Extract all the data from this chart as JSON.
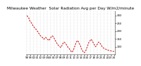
{
  "title": "Milwaukee Weather  Solar Radiation Avg per Day W/m2/minute",
  "background_color": "#ffffff",
  "line_color": "#cc0000",
  "grid_color": "#999999",
  "x_labels": [
    "98",
    "99",
    "00",
    "01",
    "02",
    "03",
    "04",
    "05",
    "06",
    "07",
    "08",
    "09",
    "10",
    "11",
    "12",
    "13",
    "14",
    "15",
    "16",
    "17",
    "18",
    "19",
    "20",
    "21",
    "22",
    "23",
    "24"
  ],
  "ylim": [
    50,
    330
  ],
  "yticks": [
    100,
    150,
    200,
    250,
    300
  ],
  "title_fontsize": 4.2,
  "tick_fontsize": 2.8,
  "y_data": [
    300,
    290,
    285,
    270,
    260,
    255,
    245,
    235,
    230,
    220,
    215,
    210,
    200,
    195,
    185,
    178,
    170,
    165,
    160,
    155,
    148,
    155,
    160,
    155,
    148,
    145,
    140,
    148,
    158,
    165,
    170,
    165,
    155,
    145,
    135,
    125,
    118,
    110,
    105,
    100,
    95,
    105,
    115,
    125,
    130,
    125,
    118,
    110,
    100,
    95,
    88,
    80,
    72,
    65,
    70,
    80,
    95,
    110,
    125,
    135,
    140,
    130,
    120,
    108,
    95,
    80,
    72,
    65,
    62,
    70,
    80,
    95,
    110,
    125,
    135,
    142,
    148,
    140,
    130,
    120,
    110,
    100,
    105,
    115,
    125,
    130,
    125,
    118,
    110,
    100,
    95,
    90,
    88,
    85,
    82,
    80,
    78,
    76,
    75,
    74,
    73,
    72,
    71,
    70
  ]
}
